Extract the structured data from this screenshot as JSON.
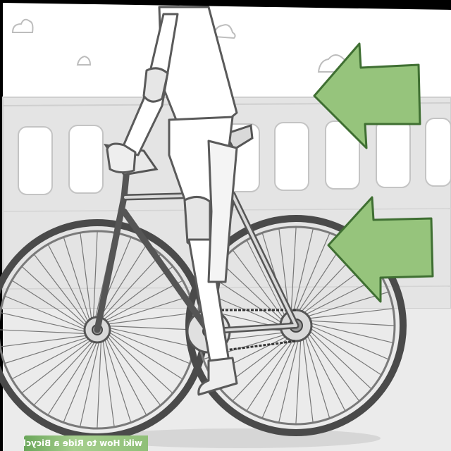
{
  "image": {
    "subject": "wikiHow-style illustration: cyclist riding a bicycle with two green arrows pointing left",
    "palette": {
      "background": "#ffffff",
      "scenery": "#e6e6e6",
      "line_art": "#5a5a5a",
      "arrow_fill": "#96c47c",
      "arrow_stroke": "#3f6f32",
      "border": "#000000"
    },
    "icons": [
      "cloud-icon",
      "arrow-left-icon",
      "bicycle",
      "rider"
    ]
  },
  "watermark": {
    "text": "wiki How to Ride a Bicycle"
  }
}
